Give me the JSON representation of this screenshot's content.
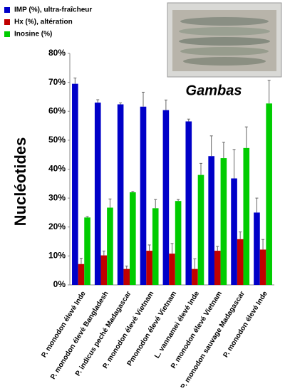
{
  "chart_data": {
    "type": "bar",
    "annotation": "Gambas",
    "y_label": "Nucléotides",
    "categories": [
      "P. monodon élevé Inde",
      "P. monodon élevé Bangladesh",
      "P. indicus peché Madagascar",
      "P. monodon  élevé Vietnam",
      "Pmonodon  élevé Vietnam",
      "L. vannamei élevé Inde",
      "P. monodon  élevé Vietnam",
      "P. monodon  sauvage Madagascar",
      "P. monodon élevé Inde"
    ],
    "series": [
      {
        "name": "IMP (%), ultra-fraîcheur",
        "color": "#0000c8",
        "values": [
          69.5,
          63,
          62.4,
          61.6,
          60.4,
          56.5,
          44.5,
          36.8,
          25
        ],
        "errors": [
          2,
          1,
          0.5,
          5,
          3.5,
          0.8,
          7,
          10,
          5
        ]
      },
      {
        "name": "Hx (%), altération",
        "color": "#c00000",
        "values": [
          7.2,
          10.2,
          5.5,
          11.8,
          10.8,
          5.5,
          11.8,
          15.8,
          12.2
        ],
        "errors": [
          2,
          1.5,
          1,
          2,
          3.5,
          3.5,
          1.5,
          2.5,
          3.5
        ]
      },
      {
        "name": "Inosine (%)",
        "color": "#00cc00",
        "values": [
          23.3,
          26.7,
          32,
          26.5,
          29,
          38,
          43.8,
          47.3,
          62.7
        ],
        "errors": [
          0.3,
          3,
          0.3,
          3,
          0.5,
          4,
          5.5,
          7.3,
          8
        ]
      }
    ],
    "ylim": [
      0,
      80
    ],
    "yticks": [
      {
        "value": 0,
        "label": "0%"
      },
      {
        "value": 10,
        "label": "10%"
      },
      {
        "value": 20,
        "label": "20%"
      },
      {
        "value": 30,
        "label": "30%"
      },
      {
        "value": 40,
        "label": "40%"
      },
      {
        "value": 50,
        "label": "50%"
      },
      {
        "value": 60,
        "label": "60%"
      },
      {
        "value": 70,
        "label": "70%"
      },
      {
        "value": 80,
        "label": "80%"
      }
    ],
    "grid": false
  }
}
